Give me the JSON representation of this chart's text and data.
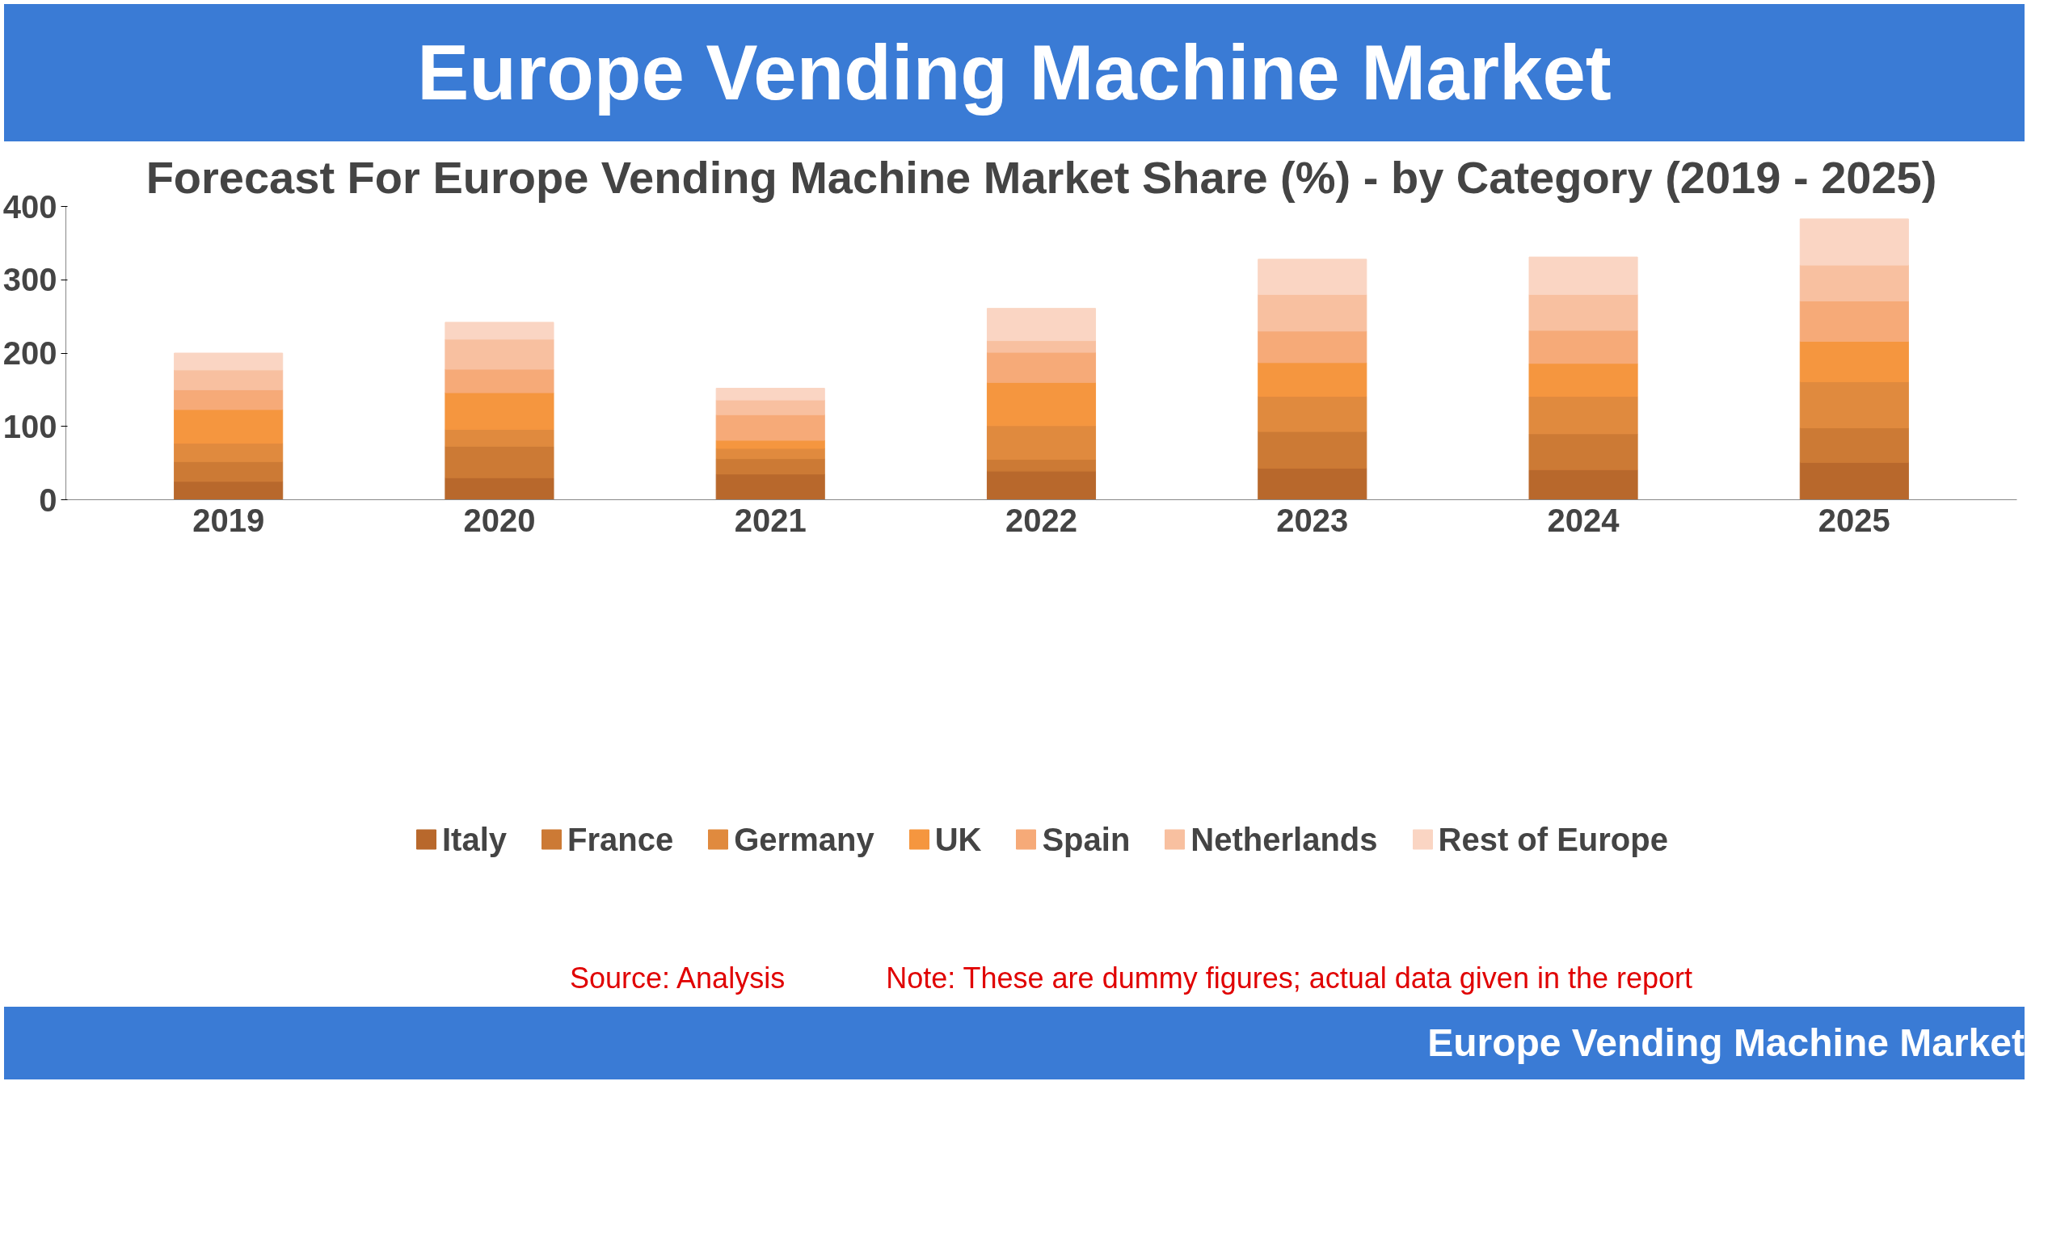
{
  "chart_data": {
    "type": "bar",
    "stacked": true,
    "title": "Europe Vending Machine Market",
    "subtitle": "Forecast For Europe Vending Machine Market Share (%) - by Category (2019 - 2025)",
    "categories": [
      "2019",
      "2020",
      "2021",
      "2022",
      "2023",
      "2024",
      "2025"
    ],
    "series": [
      {
        "name": "Italy",
        "color": "#b8682c",
        "values": [
          25,
          30,
          35,
          39,
          43,
          41,
          51
        ]
      },
      {
        "name": "France",
        "color": "#cc7a35",
        "values": [
          27,
          43,
          21,
          16,
          50,
          49,
          47
        ]
      },
      {
        "name": "Germany",
        "color": "#e08a3e",
        "values": [
          25,
          23,
          14,
          46,
          48,
          51,
          63
        ]
      },
      {
        "name": "UK",
        "color": "#f5963f",
        "values": [
          46,
          50,
          11,
          59,
          46,
          45,
          55
        ]
      },
      {
        "name": "Spain",
        "color": "#f6aa78",
        "values": [
          27,
          32,
          35,
          41,
          43,
          45,
          55
        ]
      },
      {
        "name": "Netherlands",
        "color": "#f8c0a0",
        "values": [
          27,
          41,
          20,
          16,
          50,
          49,
          49
        ]
      },
      {
        "name": "Rest of Europe",
        "color": "#fad5c3",
        "values": [
          23,
          23,
          16,
          44,
          48,
          51,
          63
        ]
      }
    ],
    "ylim": [
      0,
      400
    ],
    "yticks": [
      0,
      100,
      200,
      300,
      400
    ],
    "grid": false,
    "legend": "bottom",
    "annotations": [
      "Source: Analysis",
      "Note: These are dummy figures; actual data given in the report",
      "Europe Vending Machine Market"
    ]
  }
}
